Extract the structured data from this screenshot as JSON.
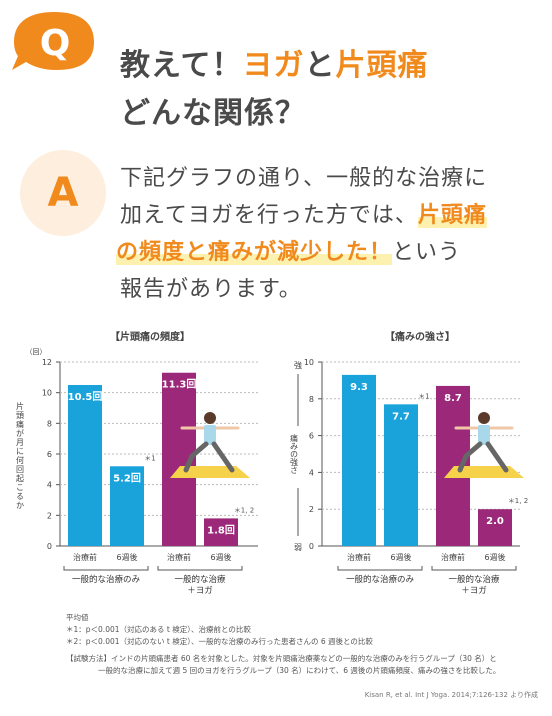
{
  "question": {
    "badge": "Q",
    "line1_pre": "教えて！",
    "line1_hl1": "ヨガ",
    "line1_mid": "と",
    "line1_hl2": "片頭痛",
    "line2": "どんな関係？"
  },
  "answer": {
    "badge": "A",
    "line1": "下記グラフの通り、一般的な治療に",
    "line2_pre": "加えてヨガを行った方では、",
    "line2_hl": "片頭痛",
    "line3_hl": "の頻度と痛みが減少した！",
    "line3_post": "という",
    "line4": "報告があります。"
  },
  "colors": {
    "accent": "#f18a1c",
    "blue": "#1aa3db",
    "purple": "#9b2879",
    "answer_bg": "#fdeede"
  },
  "chart_data": [
    {
      "type": "bar",
      "title": "【片頭痛の頻度】",
      "ylabel": "片頭痛が月に何回起こるか",
      "yunit": "（回）",
      "ylim": [
        0,
        12
      ],
      "yticks": [
        "0",
        "2",
        "4",
        "6",
        "8",
        "10",
        "12"
      ],
      "categories": [
        "治療前",
        "6週後",
        "治療前",
        "6週後"
      ],
      "groups": [
        "一般的な治療のみ",
        "一般的な治療\n＋ヨガ"
      ],
      "values": [
        10.5,
        5.2,
        11.3,
        1.8
      ],
      "value_labels": [
        "10.5回",
        "5.2回",
        "11.3回",
        "1.8回"
      ],
      "notes": [
        "",
        "＊1",
        "",
        "＊1, 2"
      ]
    },
    {
      "type": "bar",
      "title": "【痛みの強さ】",
      "ylabel": "痛みの強さ",
      "ytop": "強",
      "ybottom": "弱",
      "ylim": [
        0,
        10
      ],
      "yticks": [
        "0",
        "2",
        "4",
        "6",
        "8",
        "10"
      ],
      "categories": [
        "治療前",
        "6週後",
        "治療前",
        "6週後"
      ],
      "groups": [
        "一般的な治療のみ",
        "一般的な治療\n＋ヨガ"
      ],
      "values": [
        9.3,
        7.7,
        8.7,
        2.0
      ],
      "value_labels": [
        "9.3",
        "7.7",
        "8.7",
        "2.0"
      ],
      "notes": [
        "",
        "＊1",
        "",
        "＊1, 2"
      ]
    }
  ],
  "footnotes": {
    "heading": "平均値",
    "n1": "＊1：p＜0.001（対応のある t 検定）、治療前との比較",
    "n2": "＊2：p＜0.001（対応のない t 検定）、一般的な治療のみ行った患者さんの 6 週後との比較",
    "method1": "【試験方法】インドの片頭痛患者 60 名を対象とした。対象を片頭痛治療薬などの一般的な治療のみを行うグループ（30 名）と",
    "method2": "一般的な治療に加えて週 5 回のヨガを行うグループ（30 名）にわけて、6 週後の片頭痛頻度、痛みの強さを比較した。",
    "source": "Kisan R, et al. Int J Yoga. 2014;7:126-132 より作成"
  }
}
